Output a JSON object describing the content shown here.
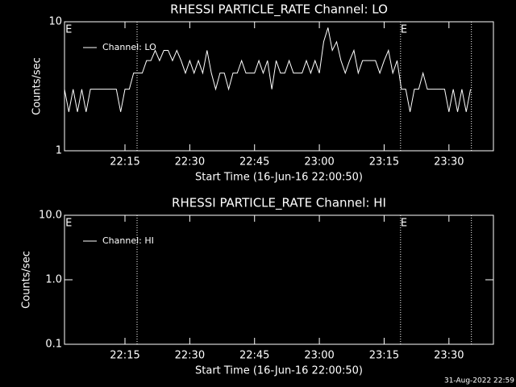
{
  "chart_data": [
    {
      "type": "line",
      "title": "RHESSI PARTICLE_RATE Channel: LO",
      "x_label": "Start Time (16-Jun-16 22:00:50)",
      "y_label": "Counts/sec",
      "log_y": true,
      "ylim": [
        1,
        10
      ],
      "yticks": [
        1,
        10
      ],
      "xlim": [
        1,
        100.3
      ],
      "xticks": [
        {
          "value": 15,
          "label": "22:15"
        },
        {
          "value": 30,
          "label": "22:30"
        },
        {
          "value": 45,
          "label": "22:45"
        },
        {
          "value": 60,
          "label": "23:00"
        },
        {
          "value": 75,
          "label": "23:15"
        },
        {
          "value": 90,
          "label": "23:30"
        }
      ],
      "vlines": [
        17.8,
        78.8,
        95.2
      ],
      "annotations": [
        {
          "text": "E",
          "x": 1.2
        },
        {
          "text": "E",
          "x": 78.8
        }
      ],
      "x": [
        1,
        2,
        3,
        4,
        5,
        6,
        7,
        8,
        9,
        10,
        11,
        12,
        13,
        14,
        15,
        16,
        17,
        18,
        19,
        20,
        21,
        22,
        23,
        24,
        25,
        26,
        27,
        28,
        29,
        30,
        31,
        32,
        33,
        34,
        35,
        36,
        37,
        38,
        39,
        40,
        41,
        42,
        43,
        44,
        45,
        46,
        47,
        48,
        49,
        50,
        51,
        52,
        53,
        54,
        55,
        56,
        57,
        58,
        59,
        60,
        61,
        62,
        63,
        64,
        65,
        66,
        67,
        68,
        69,
        70,
        71,
        72,
        73,
        74,
        75,
        76,
        77,
        78,
        79,
        80,
        81,
        82,
        83,
        84,
        85,
        86,
        87,
        88,
        89,
        90,
        91,
        92,
        93,
        94,
        95
      ],
      "series": [
        {
          "name": "Channel: LO",
          "color": "#ffffff",
          "values": [
            3,
            2,
            3,
            2,
            3,
            2,
            3,
            3,
            3,
            3,
            3,
            3,
            3,
            2,
            3,
            3,
            4,
            4,
            4,
            5,
            5,
            6,
            5,
            6,
            6,
            5,
            6,
            5,
            4,
            5,
            4,
            5,
            4,
            6,
            4,
            3,
            4,
            4,
            3,
            4,
            4,
            5,
            4,
            4,
            4,
            5,
            4,
            5,
            3,
            5,
            4,
            4,
            5,
            4,
            4,
            4,
            5,
            4,
            5,
            4,
            7,
            9,
            6,
            7,
            5,
            4,
            5,
            6,
            4,
            5,
            5,
            5,
            5,
            4,
            5,
            6,
            4,
            5,
            3,
            3,
            2,
            3,
            3,
            4,
            3,
            3,
            3,
            3,
            3,
            2,
            3,
            2,
            3,
            2,
            3
          ]
        }
      ]
    },
    {
      "type": "line",
      "title": "RHESSI PARTICLE_RATE Channel: HI",
      "x_label": "Start Time (16-Jun-16 22:00:50)",
      "y_label": "Counts/sec",
      "log_y": true,
      "ylim": [
        0.1,
        10
      ],
      "yticks": [
        0.1,
        {
          "value": 1,
          "label": "1.0"
        },
        {
          "value": 10,
          "label": "10.0"
        }
      ],
      "xlim": [
        1,
        100.3
      ],
      "xticks": [
        {
          "value": 15,
          "label": "22:15"
        },
        {
          "value": 30,
          "label": "22:30"
        },
        {
          "value": 45,
          "label": "22:45"
        },
        {
          "value": 60,
          "label": "23:00"
        },
        {
          "value": 75,
          "label": "23:15"
        },
        {
          "value": 90,
          "label": "23:30"
        }
      ],
      "vlines": [
        17.8,
        78.8,
        95.2
      ],
      "annotations": [
        {
          "text": "E",
          "x": 1.2
        },
        {
          "text": "E",
          "x": 78.8
        }
      ],
      "x": [],
      "series": [
        {
          "name": "Channel: HI",
          "color": "#ffffff",
          "values": []
        }
      ]
    }
  ],
  "footer": "31-Aug-2022 22:59"
}
